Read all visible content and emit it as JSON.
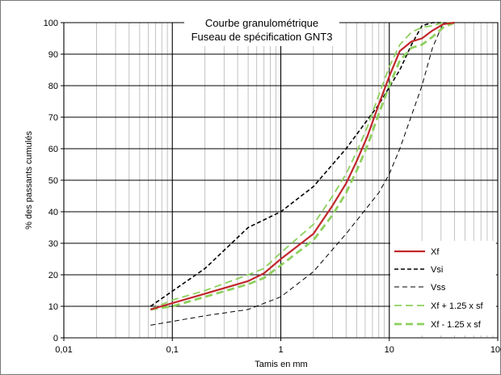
{
  "chart_data": {
    "type": "line",
    "title": "Courbe granulométrique",
    "subtitle": "Fuseau de spécification GNT3",
    "xlabel": "Tamis en mm",
    "ylabel": "% des passants cumulés",
    "xscale": "log",
    "xlim": [
      0.01,
      100
    ],
    "ylim": [
      0,
      100
    ],
    "grid": true,
    "legend_position": "bottom-right",
    "x_ticks": [
      {
        "value": 0.01,
        "label": "0,01"
      },
      {
        "value": 0.1,
        "label": "0,1"
      },
      {
        "value": 1,
        "label": "1"
      },
      {
        "value": 10,
        "label": "10"
      },
      {
        "value": 100,
        "label": "100"
      }
    ],
    "y_ticks": [
      0,
      10,
      20,
      30,
      40,
      50,
      60,
      70,
      80,
      90,
      100
    ],
    "series": [
      {
        "name": "Xf",
        "color": "#c0282d",
        "dash": "solid",
        "points": [
          [
            0.063,
            9
          ],
          [
            0.1,
            11
          ],
          [
            0.2,
            14
          ],
          [
            0.5,
            18
          ],
          [
            0.7,
            20.5
          ],
          [
            1,
            25
          ],
          [
            2,
            33
          ],
          [
            3,
            42
          ],
          [
            4,
            49
          ],
          [
            5,
            56
          ],
          [
            6.3,
            64
          ],
          [
            8,
            74
          ],
          [
            10,
            83
          ],
          [
            12.5,
            91
          ],
          [
            16,
            94
          ],
          [
            20,
            95
          ],
          [
            25,
            97.5
          ],
          [
            31.5,
            99.5
          ],
          [
            40,
            100
          ]
        ]
      },
      {
        "name": "Vsi",
        "color": "#000000",
        "dash": "heavy",
        "points": [
          [
            0.063,
            10
          ],
          [
            0.2,
            22
          ],
          [
            0.5,
            35
          ],
          [
            1,
            40
          ],
          [
            2,
            48
          ],
          [
            4,
            60
          ],
          [
            8,
            74
          ],
          [
            12.5,
            85
          ],
          [
            16,
            93
          ],
          [
            20,
            99
          ],
          [
            25,
            100
          ],
          [
            31.5,
            100
          ]
        ]
      },
      {
        "name": "Vss",
        "color": "#000000",
        "dash": "light",
        "points": [
          [
            0.063,
            4
          ],
          [
            0.2,
            7
          ],
          [
            0.5,
            9
          ],
          [
            1,
            13
          ],
          [
            2,
            21
          ],
          [
            4,
            33
          ],
          [
            8,
            46
          ],
          [
            10,
            52
          ],
          [
            12.5,
            60
          ],
          [
            20,
            80
          ],
          [
            25,
            92
          ],
          [
            31.5,
            100
          ]
        ]
      },
      {
        "name": "Xf + 1.25 x sf",
        "color": "#8ed05e",
        "dash": "green-light",
        "points": [
          [
            0.063,
            9
          ],
          [
            0.1,
            12
          ],
          [
            0.2,
            15
          ],
          [
            0.5,
            20
          ],
          [
            0.7,
            22
          ],
          [
            1,
            27
          ],
          [
            2,
            36
          ],
          [
            3,
            45
          ],
          [
            4,
            52
          ],
          [
            5,
            59
          ],
          [
            6.3,
            67
          ],
          [
            8,
            77
          ],
          [
            10,
            86
          ],
          [
            12.5,
            93
          ],
          [
            16,
            97
          ],
          [
            20,
            98.5
          ],
          [
            25,
            99
          ],
          [
            31.5,
            100
          ],
          [
            40,
            100
          ]
        ]
      },
      {
        "name": "Xf - 1.25 x sf",
        "color": "#8ed05e",
        "dash": "green-heavy",
        "points": [
          [
            0.063,
            9
          ],
          [
            0.1,
            10
          ],
          [
            0.2,
            13
          ],
          [
            0.5,
            17
          ],
          [
            0.7,
            19
          ],
          [
            1,
            23
          ],
          [
            2,
            31
          ],
          [
            3,
            39
          ],
          [
            4,
            46
          ],
          [
            5,
            53
          ],
          [
            6.3,
            61
          ],
          [
            8,
            71
          ],
          [
            10,
            80
          ],
          [
            12.5,
            88
          ],
          [
            16,
            92
          ],
          [
            20,
            93
          ],
          [
            25,
            95.5
          ],
          [
            31.5,
            98.5
          ],
          [
            40,
            100
          ]
        ]
      }
    ]
  }
}
